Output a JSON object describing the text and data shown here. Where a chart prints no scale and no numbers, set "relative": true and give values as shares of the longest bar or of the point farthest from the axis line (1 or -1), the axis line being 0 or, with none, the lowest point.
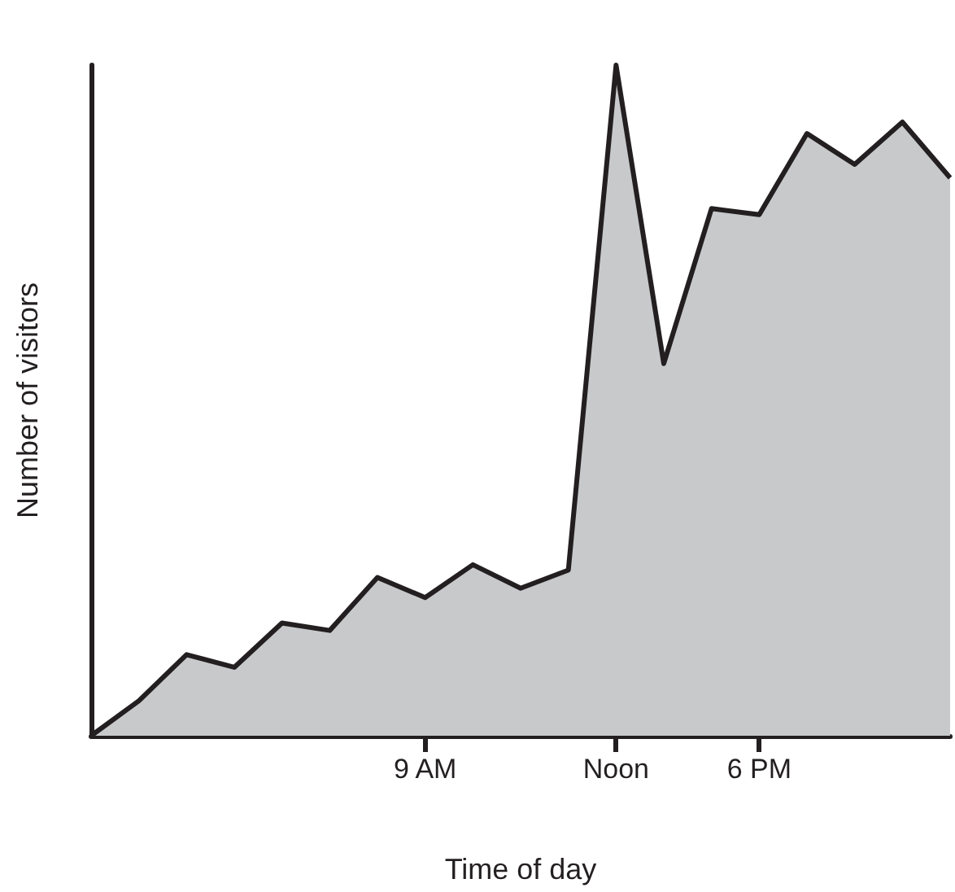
{
  "chart_data": {
    "type": "area",
    "xlabel": "Time of day",
    "ylabel": "Number of visitors",
    "relative": true,
    "categories": [
      null,
      null,
      null,
      null,
      null,
      null,
      null,
      "9 AM",
      null,
      null,
      null,
      "Noon",
      null,
      null,
      "6 PM",
      null,
      null,
      null,
      null
    ],
    "series": [
      {
        "color": "#231f20",
        "values": [
          0,
          0.052,
          0.121,
          0.102,
          0.168,
          0.157,
          0.236,
          0.206,
          0.255,
          0.22,
          0.247,
          1,
          0.555,
          0.786,
          0.777,
          0.898,
          0.852,
          0.915,
          0.832
        ]
      }
    ],
    "grid": false,
    "marker": "none",
    "line_style": "solid"
  }
}
